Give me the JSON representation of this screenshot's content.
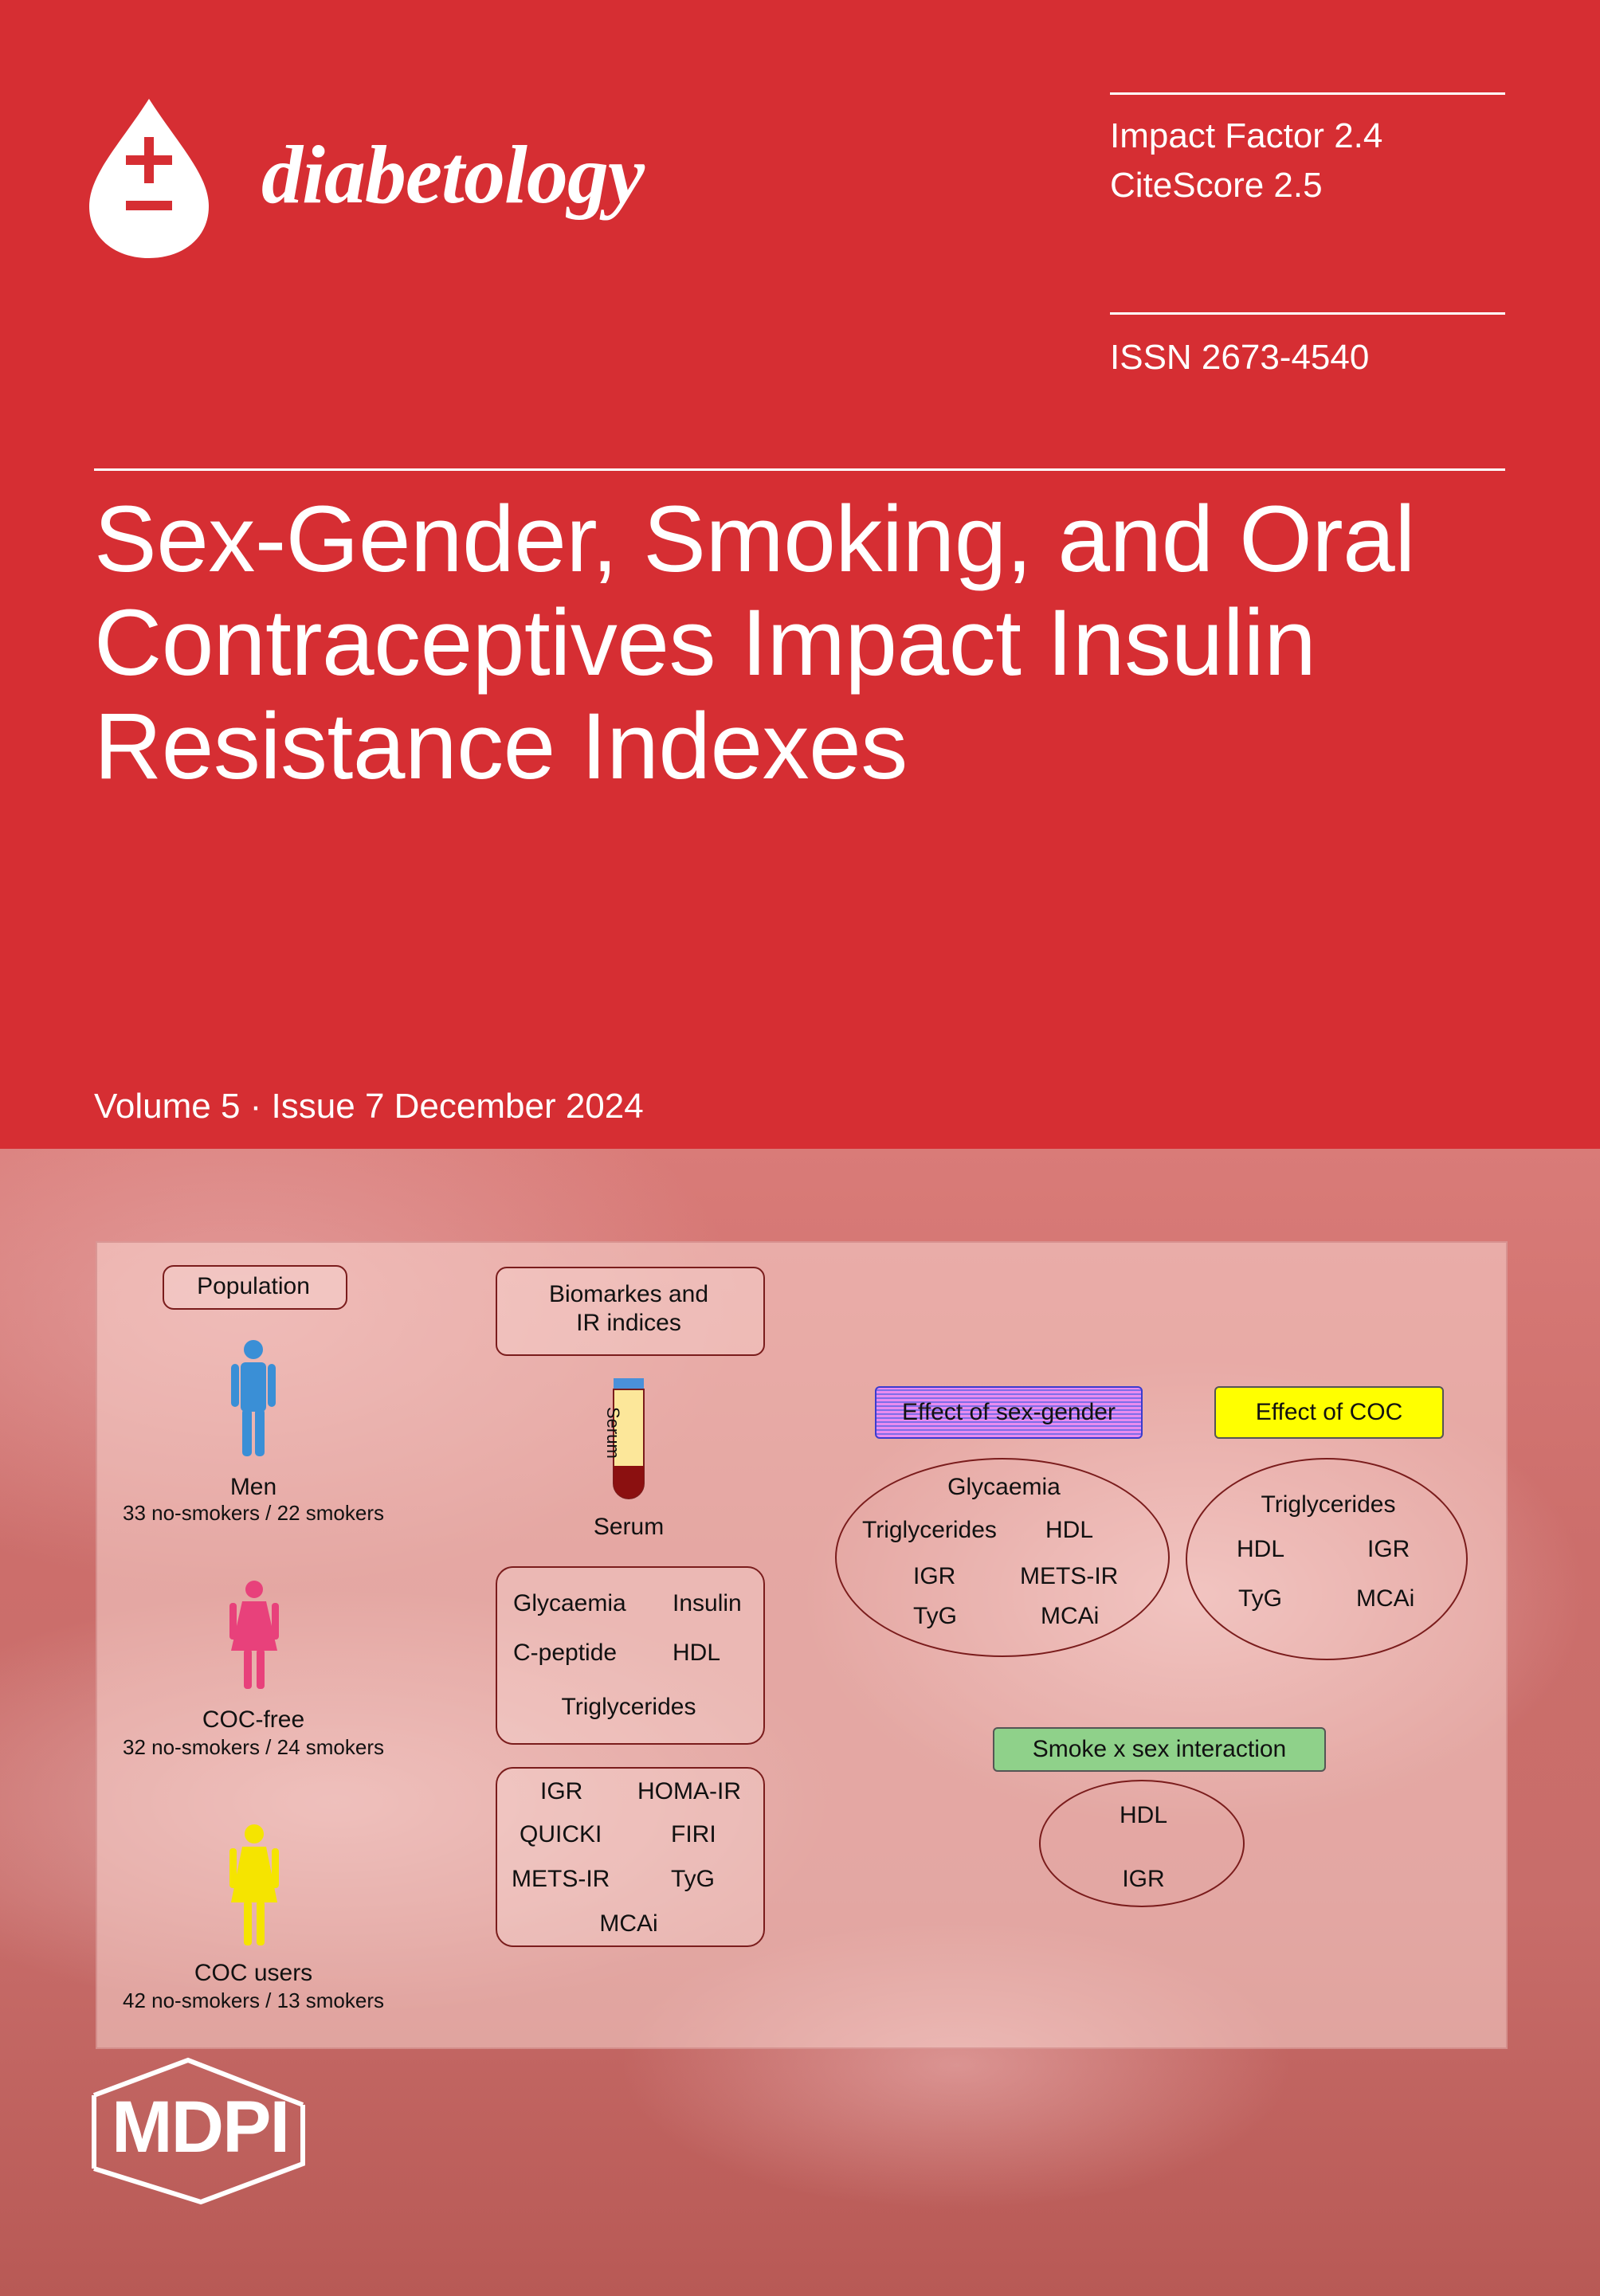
{
  "journal": {
    "name": "diabetology"
  },
  "metrics": {
    "impact_factor": "Impact Factor 2.4",
    "citescore": "CiteScore 2.5",
    "issn": "ISSN 2673-4540"
  },
  "article": {
    "title_lines": [
      "Sex-Gender, Smoking, and Oral",
      "Contraceptives Impact Insulin",
      "Resistance Indexes"
    ]
  },
  "issue": "Volume 5 · Issue 7 December 2024",
  "graphic": {
    "population": {
      "title": "Population",
      "men": {
        "label": "Men",
        "counts": "33 no-smokers / 22 smokers"
      },
      "coc_free": {
        "label": "COC-free",
        "counts": "32 no-smokers / 24 smokers"
      },
      "coc_users": {
        "label": "COC users",
        "counts": "42 no-smokers / 13 smokers"
      }
    },
    "biomarkers": {
      "title_line1": "Biomarkes and",
      "title_line2": "IR indices",
      "tube_label": "Serum",
      "serum_label": "Serum",
      "box1": [
        "Glycaemia",
        "Insulin",
        "C-peptide",
        "HDL",
        "Triglycerides"
      ],
      "box2": [
        "IGR",
        "HOMA-IR",
        "QUICKI",
        "FIRI",
        "METS-IR",
        "TyG",
        "MCAi"
      ]
    },
    "effect_sex": {
      "title": "Effect of sex-gender",
      "items": [
        "Glycaemia",
        "Triglycerides",
        "HDL",
        "IGR",
        "METS-IR",
        "TyG",
        "MCAi"
      ]
    },
    "effect_coc": {
      "title": "Effect of COC",
      "items": [
        "Triglycerides",
        "HDL",
        "IGR",
        "TyG",
        "MCAi"
      ]
    },
    "interaction": {
      "title": "Smoke x sex interaction",
      "items": [
        "HDL",
        "IGR"
      ]
    }
  },
  "publisher": "MDPI",
  "colors": {
    "cover_red": "#d62e33",
    "men_blue": "#3a8fd6",
    "coc_free_pink": "#e8417b",
    "coc_users_yellow": "#f5e400",
    "sex_tag": "#e88cf0",
    "coc_tag": "#ffff00",
    "interaction_tag": "#8fd18a"
  }
}
